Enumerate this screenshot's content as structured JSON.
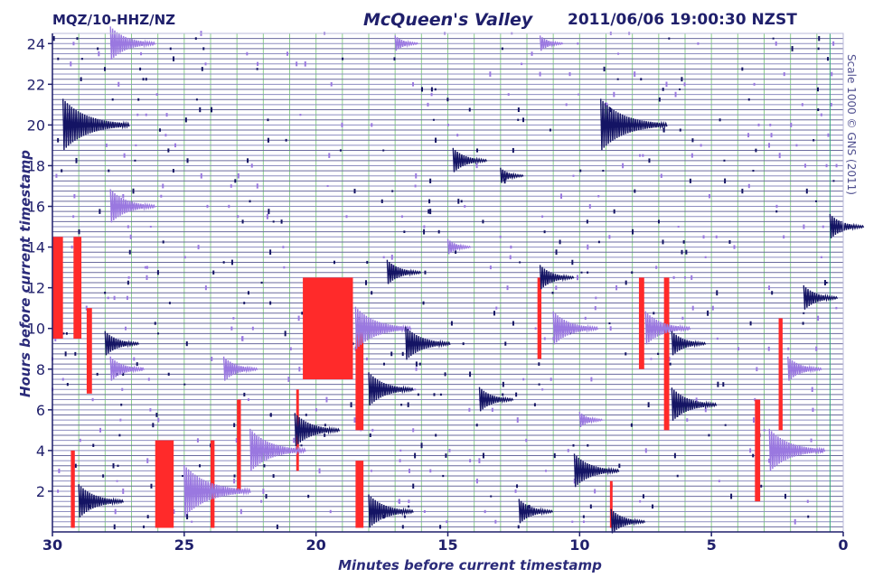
{
  "header": {
    "station": "MQZ/10-HHZ/NZ",
    "location": "McQueen's Valley",
    "timestamp": "2011/06/06 19:00:30 NZST"
  },
  "scale_note": "Scale 1000 © GNS (2011)",
  "colors": {
    "axis": "#1f1f6b",
    "trace_dark": "#141464",
    "trace_light": "#9a78e0",
    "clip": "#ff2a2a",
    "grid_v": "#8ccf8c",
    "grid_h": "#6a6a9e",
    "cursor": "#3aa87a"
  },
  "chart_data": {
    "type": "heatmap",
    "title": "McQueen's Valley",
    "xlabel": "Minutes before current timestamp",
    "ylabel": "Hours before current timestamp",
    "xlim": [
      30,
      0
    ],
    "ylim": [
      0,
      24.5
    ],
    "x_ticks": [
      30,
      25,
      20,
      15,
      10,
      5,
      0
    ],
    "y_ticks": [
      2,
      4,
      6,
      8,
      10,
      12,
      14,
      16,
      18,
      20,
      22,
      24
    ],
    "rows_per_hour": 4,
    "grid": true,
    "events": [
      {
        "hour": 24.0,
        "minute": 27.8,
        "amp": 3,
        "tone": "light"
      },
      {
        "hour": 24.0,
        "minute": 17.0,
        "amp": 1,
        "tone": "light"
      },
      {
        "hour": 24.0,
        "minute": 11.5,
        "amp": 1,
        "tone": "light"
      },
      {
        "hour": 20.0,
        "minute": 29.6,
        "amp": 5,
        "tone": "dark"
      },
      {
        "hour": 20.0,
        "minute": 9.2,
        "amp": 5,
        "tone": "dark"
      },
      {
        "hour": 18.25,
        "minute": 14.8,
        "amp": 2,
        "tone": "dark"
      },
      {
        "hour": 17.5,
        "minute": 13.0,
        "amp": 1,
        "tone": "dark"
      },
      {
        "hour": 16.0,
        "minute": 27.8,
        "amp": 3,
        "tone": "light"
      },
      {
        "hour": 15.0,
        "minute": 0.5,
        "amp": 2,
        "tone": "dark"
      },
      {
        "hour": 14.0,
        "minute": 15.0,
        "amp": 1,
        "tone": "light"
      },
      {
        "hour": 12.75,
        "minute": 17.3,
        "amp": 2,
        "tone": "dark"
      },
      {
        "hour": 12.5,
        "minute": 11.5,
        "amp": 2,
        "tone": "dark"
      },
      {
        "hour": 11.5,
        "minute": 1.5,
        "amp": 2,
        "tone": "dark"
      },
      {
        "hour": 10.0,
        "minute": 18.5,
        "amp": 4,
        "tone": "light"
      },
      {
        "hour": 10.0,
        "minute": 11.0,
        "amp": 3,
        "tone": "light"
      },
      {
        "hour": 10.0,
        "minute": 7.5,
        "amp": 3,
        "tone": "light"
      },
      {
        "hour": 9.25,
        "minute": 28.0,
        "amp": 2,
        "tone": "dark"
      },
      {
        "hour": 9.25,
        "minute": 16.6,
        "amp": 3,
        "tone": "dark"
      },
      {
        "hour": 9.25,
        "minute": 6.5,
        "amp": 2,
        "tone": "dark"
      },
      {
        "hour": 8.0,
        "minute": 27.8,
        "amp": 2,
        "tone": "light"
      },
      {
        "hour": 8.0,
        "minute": 23.5,
        "amp": 2,
        "tone": "light"
      },
      {
        "hour": 8.0,
        "minute": 2.1,
        "amp": 2,
        "tone": "light"
      },
      {
        "hour": 7.0,
        "minute": 18.0,
        "amp": 3,
        "tone": "dark"
      },
      {
        "hour": 6.5,
        "minute": 13.8,
        "amp": 2,
        "tone": "dark"
      },
      {
        "hour": 6.25,
        "minute": 6.5,
        "amp": 3,
        "tone": "dark"
      },
      {
        "hour": 5.5,
        "minute": 10.0,
        "amp": 1,
        "tone": "light"
      },
      {
        "hour": 5.0,
        "minute": 20.8,
        "amp": 3,
        "tone": "dark"
      },
      {
        "hour": 4.0,
        "minute": 22.5,
        "amp": 4,
        "tone": "light"
      },
      {
        "hour": 4.0,
        "minute": 2.8,
        "amp": 4,
        "tone": "light"
      },
      {
        "hour": 3.0,
        "minute": 10.2,
        "amp": 3,
        "tone": "dark"
      },
      {
        "hour": 2.0,
        "minute": 25.0,
        "amp": 5,
        "tone": "light"
      },
      {
        "hour": 1.5,
        "minute": 29.0,
        "amp": 3,
        "tone": "dark"
      },
      {
        "hour": 1.0,
        "minute": 18.0,
        "amp": 3,
        "tone": "dark"
      },
      {
        "hour": 1.0,
        "minute": 12.3,
        "amp": 2,
        "tone": "dark"
      },
      {
        "hour": 0.5,
        "minute": 8.8,
        "amp": 2,
        "tone": "dark"
      }
    ],
    "clipped_blocks": [
      {
        "minute_from": 30.0,
        "minute_to": 29.6,
        "hour_from": 9.5,
        "hour_to": 14.5
      },
      {
        "minute_from": 29.2,
        "minute_to": 28.9,
        "hour_from": 9.5,
        "hour_to": 14.5
      },
      {
        "minute_from": 28.7,
        "minute_to": 28.5,
        "hour_from": 6.8,
        "hour_to": 11.0
      },
      {
        "minute_from": 20.5,
        "minute_to": 18.6,
        "hour_from": 7.5,
        "hour_to": 12.5
      },
      {
        "minute_from": 18.5,
        "minute_to": 18.2,
        "hour_from": 5.0,
        "hour_to": 9.8
      },
      {
        "minute_from": 26.1,
        "minute_to": 25.4,
        "hour_from": 0.2,
        "hour_to": 4.5
      },
      {
        "minute_from": 24.0,
        "minute_to": 23.85,
        "hour_from": 0.2,
        "hour_to": 4.5
      },
      {
        "minute_from": 23.0,
        "minute_to": 22.85,
        "hour_from": 2.0,
        "hour_to": 6.5
      },
      {
        "minute_from": 29.3,
        "minute_to": 29.15,
        "hour_from": 0.2,
        "hour_to": 4.0
      },
      {
        "minute_from": 18.5,
        "minute_to": 18.2,
        "hour_from": 0.2,
        "hour_to": 3.5
      },
      {
        "minute_from": 11.6,
        "minute_to": 11.45,
        "hour_from": 8.5,
        "hour_to": 12.5
      },
      {
        "minute_from": 7.75,
        "minute_to": 7.55,
        "hour_from": 8.0,
        "hour_to": 12.5
      },
      {
        "minute_from": 6.8,
        "minute_to": 6.6,
        "hour_from": 5.0,
        "hour_to": 12.5
      },
      {
        "minute_from": 3.35,
        "minute_to": 3.15,
        "hour_from": 1.5,
        "hour_to": 6.5
      },
      {
        "minute_from": 2.45,
        "minute_to": 2.3,
        "hour_from": 5.0,
        "hour_to": 10.5
      },
      {
        "minute_from": 20.75,
        "minute_to": 20.65,
        "hour_from": 3.0,
        "hour_to": 7.0
      },
      {
        "minute_from": 8.85,
        "minute_to": 8.75,
        "hour_from": 0.2,
        "hour_to": 2.5
      }
    ]
  }
}
